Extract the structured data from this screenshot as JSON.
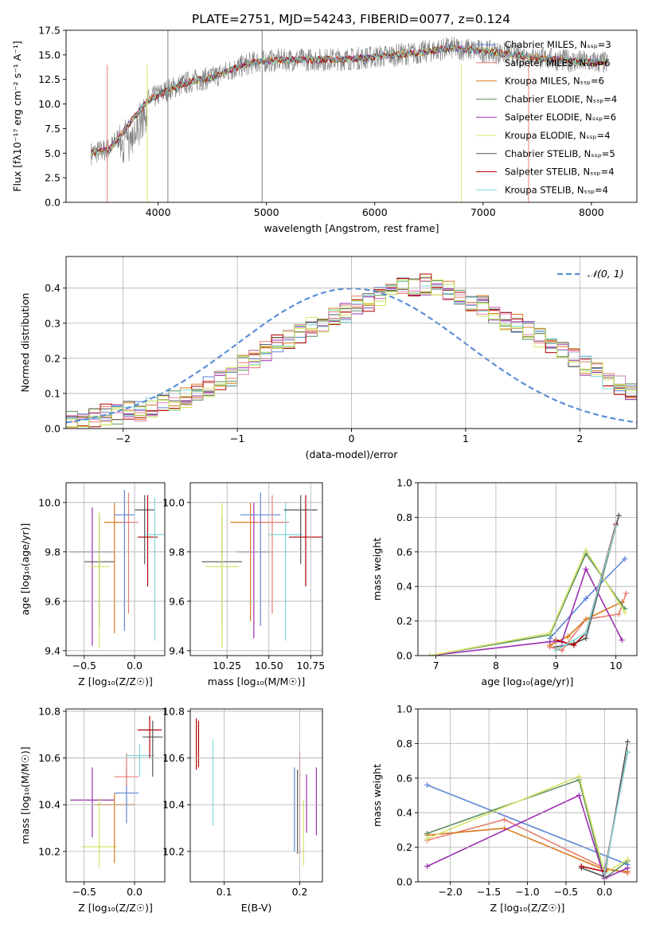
{
  "figure_title": "PLATE=2751, MJD=54243, FIBERID=0077, z=0.124",
  "colors": {
    "chabrier_miles": "#5b86d6",
    "salpeter_miles": "#e87d72",
    "kroupa_miles": "#d97a1c",
    "chabrier_elodie": "#5b8f5b",
    "salpeter_elodie": "#9b2fb0",
    "kroupa_elodie": "#d7e66a",
    "chabrier_stelib": "#555555",
    "salpeter_stelib": "#b00000",
    "kroupa_stelib": "#7fd8d8",
    "pink": "#e888c0",
    "lime": "#c0e050",
    "normal_curve": "#5b8fd6",
    "data_flux": "#808080",
    "grid": "#b0b0b0"
  },
  "chart_data": [
    {
      "type": "line",
      "id": "spectrum",
      "title": "PLATE=2751, MJD=54243, FIBERID=0077, z=0.124",
      "xlabel": "wavelength [Angstrom, rest frame]",
      "ylabel": "Flux [fλ10⁻¹⁷ erg cm⁻² s⁻¹ A⁻¹]",
      "xlim": [
        3150,
        8420
      ],
      "ylim": [
        0,
        17.5
      ],
      "xticks": [
        "4000",
        "5000",
        "6000",
        "7000",
        "8000"
      ],
      "yticks": [
        "0.0",
        "2.5",
        "5.0",
        "7.5",
        "10.0",
        "12.5",
        "15.0",
        "17.5"
      ],
      "grid": false,
      "legend_position": "top-right",
      "legend": [
        "Chabrier MILES, N_SSP=3",
        "Salpeter MILES, N_SSP=6",
        "Kroupa MILES, N_SSP=6",
        "Chabrier ELODIE, N_SSP=4",
        "Salpeter ELODIE, N_SSP=6",
        "Kroupa ELODIE, N_SSP=4",
        "Chabrier STELIB, N_SSP=5",
        "Salpeter STELIB, N_SSP=4",
        "Kroupa STELIB, N_SSP=4"
      ],
      "continuum_points": {
        "x": [
          3380,
          3550,
          3700,
          3900,
          4100,
          4300,
          4500,
          4700,
          4900,
          5200,
          5500,
          5800,
          6100,
          6400,
          6700,
          7000,
          7300,
          7600,
          7900,
          8150
        ],
        "y": [
          5.0,
          5.4,
          7.5,
          10.3,
          11.5,
          12.3,
          12.7,
          13.6,
          14.3,
          14.5,
          14.5,
          14.6,
          14.9,
          15.2,
          15.7,
          15.4,
          15.0,
          14.6,
          14.3,
          14.2
        ]
      }
    },
    {
      "type": "bar",
      "id": "residual-histogram",
      "xlabel": "(data-model)/error",
      "ylabel": "Normed distribution",
      "xlim": [
        -2.5,
        2.5
      ],
      "ylim": [
        0,
        0.49
      ],
      "xticks": [
        "−2",
        "−1",
        "0",
        "1",
        "2"
      ],
      "yticks": [
        "0.0",
        "0.1",
        "0.2",
        "0.3",
        "0.4"
      ],
      "grid": true,
      "legend_position": "top-right",
      "legend": [
        "𝒩(0, 1)"
      ],
      "bin_width": 0.1,
      "bin_start": -2.5,
      "series_values": [
        0.02,
        0.02,
        0.03,
        0.04,
        0.04,
        0.05,
        0.05,
        0.06,
        0.07,
        0.08,
        0.09,
        0.11,
        0.12,
        0.14,
        0.15,
        0.18,
        0.2,
        0.22,
        0.24,
        0.25,
        0.27,
        0.29,
        0.3,
        0.32,
        0.33,
        0.35,
        0.36,
        0.38,
        0.39,
        0.4,
        0.4,
        0.41,
        0.4,
        0.39,
        0.38,
        0.36,
        0.35,
        0.33,
        0.31,
        0.3,
        0.28,
        0.26,
        0.24,
        0.22,
        0.2,
        0.18,
        0.16,
        0.14,
        0.12,
        0.1,
        0.08,
        0.07,
        0.06,
        0.05,
        0.04,
        0.04,
        0.03,
        0.03,
        0.02,
        0.02
      ]
    },
    {
      "type": "scatter",
      "id": "age-vs-Z",
      "xlabel": "Z [log₁₀(Z/Z☉)]",
      "ylabel": "age  [log₁₀(age/yr)]",
      "xlim": [
        -0.68,
        0.3
      ],
      "ylim": [
        9.38,
        10.08
      ],
      "xticks": [
        "−0.5",
        "0.0"
      ],
      "yticks": [
        "9.4",
        "9.6",
        "9.8",
        "10.0"
      ],
      "grid": true,
      "points": [
        {
          "x": -0.42,
          "y": 9.8,
          "xerr": 0.22,
          "yerr": [
            9.42,
            9.98
          ],
          "color": "salpeter_elodie"
        },
        {
          "x": -0.35,
          "y": 9.76,
          "xerr": 0.15,
          "yerr": [
            9.5,
            9.95
          ],
          "color": "chabrier_stelib"
        },
        {
          "x": -0.35,
          "y": 9.74,
          "xerr": 0.1,
          "yerr": [
            9.41,
            9.96
          ],
          "color": "kroupa_elodie"
        },
        {
          "x": -0.2,
          "y": 9.92,
          "xerr": 0.1,
          "yerr": [
            9.47,
            10.0
          ],
          "color": "kroupa_miles"
        },
        {
          "x": -0.06,
          "y": 9.92,
          "xerr": 0.1,
          "yerr": [
            9.55,
            10.04
          ],
          "color": "salpeter_miles"
        },
        {
          "x": -0.1,
          "y": 9.95,
          "xerr": 0.1,
          "yerr": [
            9.48,
            10.05
          ],
          "color": "chabrier_miles"
        },
        {
          "x": 0.1,
          "y": 9.97,
          "xerr": 0.1,
          "yerr": [
            9.75,
            10.03
          ],
          "color": "chabrier_stelib"
        },
        {
          "x": 0.13,
          "y": 9.86,
          "xerr": 0.1,
          "yerr": [
            9.66,
            10.03
          ],
          "color": "salpeter_stelib"
        },
        {
          "x": 0.2,
          "y": 9.87,
          "xerr": 0.1,
          "yerr": [
            9.44,
            10.02
          ],
          "color": "kroupa_stelib"
        }
      ]
    },
    {
      "type": "scatter",
      "id": "age-vs-mass",
      "xlabel": "mass [log₁₀(M/M☉)]",
      "ylabel": "",
      "xlim": [
        10.03,
        10.82
      ],
      "ylim": [
        9.38,
        10.08
      ],
      "xticks": [
        "10.25",
        "10.50",
        "10.75"
      ],
      "yticks": [
        "9.4",
        "9.6",
        "9.8",
        "10.0"
      ],
      "grid": true,
      "points": [
        {
          "x": 10.22,
          "y": 9.76,
          "xerr": 0.12,
          "yerr": [
            9.5,
            9.95
          ],
          "color": "chabrier_stelib"
        },
        {
          "x": 10.22,
          "y": 9.74,
          "xerr": 0.1,
          "yerr": [
            9.41,
            10.0
          ],
          "color": "kroupa_elodie"
        },
        {
          "x": 10.39,
          "y": 9.92,
          "xerr": 0.12,
          "yerr": [
            9.52,
            10.0
          ],
          "color": "kroupa_miles"
        },
        {
          "x": 10.41,
          "y": 9.8,
          "xerr": 0.1,
          "yerr": [
            9.45,
            10.0
          ],
          "color": "salpeter_elodie"
        },
        {
          "x": 10.45,
          "y": 9.95,
          "xerr": 0.12,
          "yerr": [
            9.5,
            10.04
          ],
          "color": "chabrier_miles"
        },
        {
          "x": 10.52,
          "y": 9.92,
          "xerr": 0.1,
          "yerr": [
            9.55,
            10.03
          ],
          "color": "salpeter_miles"
        },
        {
          "x": 10.6,
          "y": 9.87,
          "xerr": 0.1,
          "yerr": [
            9.44,
            10.0
          ],
          "color": "kroupa_stelib"
        },
        {
          "x": 10.69,
          "y": 9.97,
          "xerr": 0.1,
          "yerr": [
            9.75,
            10.03
          ],
          "color": "chabrier_stelib"
        },
        {
          "x": 10.72,
          "y": 9.86,
          "xerr": 0.1,
          "yerr": [
            9.66,
            10.03
          ],
          "color": "salpeter_stelib"
        }
      ]
    },
    {
      "type": "line",
      "id": "massweight-vs-age",
      "xlabel": "age  [log₁₀(age/yr)]",
      "ylabel": "mass weight",
      "xlim": [
        6.7,
        10.35
      ],
      "ylim": [
        0,
        1.0
      ],
      "xticks": [
        "7",
        "8",
        "9",
        "10"
      ],
      "yticks": [
        "0.0",
        "0.2",
        "0.4",
        "0.6",
        "0.8",
        "1.0"
      ],
      "grid": true,
      "series": [
        {
          "color": "chabrier_miles",
          "x": [
            8.9,
            9.5,
            10.15
          ],
          "y": [
            0.1,
            0.33,
            0.56
          ]
        },
        {
          "color": "salpeter_miles",
          "x": [
            8.9,
            9.1,
            9.5,
            10.05,
            10.17
          ],
          "y": [
            0.05,
            0.03,
            0.21,
            0.24,
            0.36
          ]
        },
        {
          "color": "kroupa_miles",
          "x": [
            8.9,
            9.2,
            9.5,
            10.1
          ],
          "y": [
            0.06,
            0.11,
            0.21,
            0.31
          ]
        },
        {
          "color": "chabrier_elodie",
          "x": [
            6.9,
            8.9,
            9.5,
            10.15
          ],
          "y": [
            0.0,
            0.12,
            0.59,
            0.27
          ]
        },
        {
          "color": "salpeter_elodie",
          "x": [
            6.9,
            8.9,
            9.1,
            9.5,
            10.1
          ],
          "y": [
            0.0,
            0.08,
            0.08,
            0.5,
            0.09
          ]
        },
        {
          "color": "kroupa_elodie",
          "x": [
            6.9,
            8.9,
            9.5,
            10.15
          ],
          "y": [
            0.0,
            0.13,
            0.61,
            0.25
          ]
        },
        {
          "color": "chabrier_stelib",
          "x": [
            9.0,
            9.3,
            9.5,
            10.05
          ],
          "y": [
            0.05,
            0.07,
            0.1,
            0.81
          ]
        },
        {
          "color": "salpeter_stelib",
          "x": [
            9.0,
            9.3,
            9.5,
            10.0
          ],
          "y": [
            0.09,
            0.06,
            0.13,
            0.76
          ]
        },
        {
          "color": "kroupa_stelib",
          "x": [
            9.0,
            9.5,
            10.0
          ],
          "y": [
            0.03,
            0.13,
            0.75
          ]
        }
      ]
    },
    {
      "type": "scatter",
      "id": "mass-vs-Z",
      "xlabel": "Z [log₁₀(Z/Z☉)]",
      "ylabel": "mass [log₁₀(M/M☉)]",
      "xlim": [
        -0.68,
        0.3
      ],
      "ylim": [
        10.07,
        10.81
      ],
      "xticks": [
        "−0.5",
        "0.0"
      ],
      "yticks": [
        "10.2",
        "10.4",
        "10.6",
        "10.8"
      ],
      "grid": true,
      "points": [
        {
          "x": -0.42,
          "y": 10.42,
          "xerr": 0.22,
          "yerr": [
            10.26,
            10.56
          ],
          "color": "salpeter_elodie"
        },
        {
          "x": -0.35,
          "y": 10.22,
          "xerr": 0.18,
          "yerr": [
            10.13,
            10.43
          ],
          "color": "kroupa_elodie"
        },
        {
          "x": -0.2,
          "y": 10.4,
          "xerr": 0.2,
          "yerr": [
            10.15,
            10.45
          ],
          "color": "kroupa_miles"
        },
        {
          "x": -0.08,
          "y": 10.45,
          "xerr": 0.12,
          "yerr": [
            10.32,
            10.56
          ],
          "color": "chabrier_miles"
        },
        {
          "x": -0.08,
          "y": 10.52,
          "xerr": 0.12,
          "yerr": [
            10.48,
            10.62
          ],
          "color": "salpeter_miles"
        },
        {
          "x": 0.05,
          "y": 10.61,
          "xerr": 0.14,
          "yerr": [
            10.52,
            10.66
          ],
          "color": "kroupa_stelib"
        },
        {
          "x": 0.15,
          "y": 10.72,
          "xerr": 0.12,
          "yerr": [
            10.6,
            10.78
          ],
          "color": "salpeter_stelib"
        },
        {
          "x": 0.18,
          "y": 10.69,
          "xerr": 0.1,
          "yerr": [
            10.52,
            10.76
          ],
          "color": "chabrier_stelib"
        }
      ]
    },
    {
      "type": "scatter",
      "id": "mass-vs-EBV",
      "xlabel": "E(B-V)",
      "ylabel": "",
      "xlim": [
        0.055,
        0.23
      ],
      "ylim": [
        10.07,
        10.81
      ],
      "xticks": [
        "0.1",
        "0.2"
      ],
      "yticks": [
        "10.2",
        "10.4",
        "10.6",
        "10.8"
      ],
      "grid": true,
      "points": [
        {
          "x": 0.063,
          "y": 10.66,
          "yerr": [
            10.55,
            10.77
          ],
          "color": "salpeter_stelib"
        },
        {
          "x": 0.066,
          "y": 10.65,
          "yerr": [
            10.56,
            10.76
          ],
          "color": "salpeter_stelib"
        },
        {
          "x": 0.085,
          "y": 10.5,
          "yerr": [
            10.31,
            10.68
          ],
          "color": "kroupa_stelib"
        },
        {
          "x": 0.193,
          "y": 10.38,
          "yerr": [
            10.2,
            10.56
          ],
          "color": "chabrier_miles"
        },
        {
          "x": 0.197,
          "y": 10.37,
          "yerr": [
            10.19,
            10.55
          ],
          "color": "chabrier_stelib"
        },
        {
          "x": 0.2,
          "y": 10.42,
          "yerr": [
            10.19,
            10.63
          ],
          "color": "salpeter_miles"
        },
        {
          "x": 0.205,
          "y": 10.3,
          "yerr": [
            10.14,
            10.42
          ],
          "color": "kroupa_elodie"
        },
        {
          "x": 0.209,
          "y": 10.4,
          "yerr": [
            10.28,
            10.53
          ],
          "color": "salpeter_elodie"
        },
        {
          "x": 0.222,
          "y": 10.41,
          "yerr": [
            10.27,
            10.56
          ],
          "color": "salpeter_elodie"
        }
      ]
    },
    {
      "type": "line",
      "id": "massweight-vs-Z",
      "xlabel": "Z [log₁₀(Z/Z☉)]",
      "ylabel": "mass weight",
      "xlim": [
        -2.42,
        0.42
      ],
      "ylim": [
        0,
        1.0
      ],
      "xticks": [
        "−2.0",
        "−1.5",
        "−1.0",
        "−0.5",
        "0.0"
      ],
      "yticks": [
        "0.0",
        "0.2",
        "0.4",
        "0.6",
        "0.8",
        "1.0"
      ],
      "grid": true,
      "series": [
        {
          "color": "chabrier_miles",
          "x": [
            -2.3,
            0.3
          ],
          "y": [
            0.56,
            0.1
          ]
        },
        {
          "color": "salpeter_miles",
          "x": [
            -2.3,
            -1.3,
            0.0,
            0.3
          ],
          "y": [
            0.24,
            0.36,
            0.08,
            0.05
          ]
        },
        {
          "color": "kroupa_miles",
          "x": [
            -2.3,
            -1.3,
            0.0,
            0.3
          ],
          "y": [
            0.27,
            0.31,
            0.07,
            0.06
          ]
        },
        {
          "color": "chabrier_elodie",
          "x": [
            -2.3,
            -0.33,
            0.0,
            0.3
          ],
          "y": [
            0.28,
            0.59,
            0.02,
            0.12
          ]
        },
        {
          "color": "salpeter_elodie",
          "x": [
            -2.3,
            -0.33,
            0.0,
            0.3
          ],
          "y": [
            0.09,
            0.5,
            0.02,
            0.08
          ]
        },
        {
          "color": "kroupa_elodie",
          "x": [
            -2.3,
            -0.33,
            0.0,
            0.3
          ],
          "y": [
            0.25,
            0.61,
            0.05,
            0.13
          ]
        },
        {
          "color": "chabrier_stelib",
          "x": [
            -0.3,
            0.0,
            0.3
          ],
          "y": [
            0.08,
            0.03,
            0.81
          ]
        },
        {
          "color": "salpeter_stelib",
          "x": [
            -0.3,
            0.0,
            0.3
          ],
          "y": [
            0.09,
            0.06,
            0.75
          ]
        },
        {
          "color": "kroupa_stelib",
          "x": [
            0.0,
            0.3
          ],
          "y": [
            0.05,
            0.75
          ]
        }
      ]
    }
  ]
}
